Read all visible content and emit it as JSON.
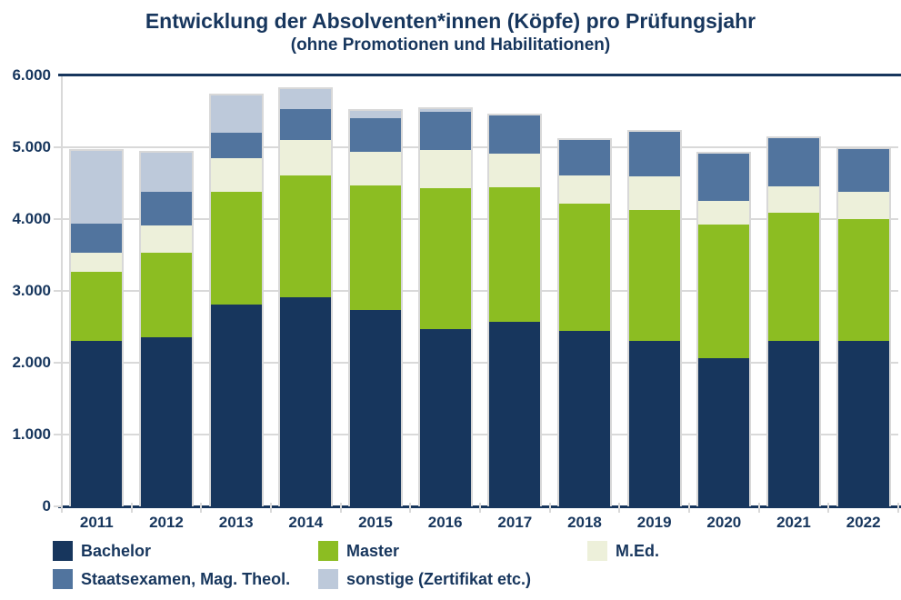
{
  "title": "Entwicklung der Absolventen*innen (Köpfe) pro Prüfungsjahr",
  "subtitle": "(ohne Promotionen und Habilitationen)",
  "colors": {
    "text": "#17365d",
    "axis": "#17365d",
    "gridline": "#d9d9d9",
    "bar_border": "#d8d8d8",
    "background": "#ffffff"
  },
  "chart_data": {
    "type": "bar",
    "stacked": true,
    "title": "Entwicklung der Absolventen*innen (Köpfe) pro Prüfungsjahr",
    "subtitle": "(ohne Promotionen und Habilitationen)",
    "categories": [
      "2011",
      "2012",
      "2013",
      "2014",
      "2015",
      "2016",
      "2017",
      "2018",
      "2019",
      "2020",
      "2021",
      "2022"
    ],
    "series": [
      {
        "name": "Bachelor",
        "color": "#17365d",
        "values": [
          2310,
          2350,
          2810,
          2910,
          2740,
          2470,
          2570,
          2440,
          2300,
          2060,
          2300,
          2300
        ]
      },
      {
        "name": "Master",
        "color": "#8cbd22",
        "values": [
          950,
          1180,
          1570,
          1700,
          1730,
          1960,
          1870,
          1770,
          1830,
          1870,
          1790,
          1700
        ]
      },
      {
        "name": "M.Ed.",
        "color": "#edf0da",
        "values": [
          270,
          380,
          470,
          490,
          470,
          530,
          470,
          400,
          470,
          320,
          360,
          380
        ]
      },
      {
        "name": "Staatsexamen, Mag. Theol.",
        "color": "#51749e",
        "values": [
          410,
          470,
          350,
          430,
          460,
          530,
          530,
          490,
          610,
          660,
          680,
          600
        ]
      },
      {
        "name": "sonstige (Zertifikat etc.)",
        "color": "#bdc9da",
        "values": [
          1010,
          550,
          520,
          280,
          110,
          40,
          0,
          0,
          0,
          0,
          0,
          0
        ]
      }
    ],
    "totals": [
      4950,
      4930,
      5720,
      5810,
      5510,
      5530,
      5440,
      5100,
      5210,
      4910,
      5130,
      4980
    ],
    "xlabel": "",
    "ylabel": "",
    "ylim": [
      0,
      6000
    ],
    "ytick_step": 1000,
    "ytick_labels": [
      "0",
      "1.000",
      "2.000",
      "3.000",
      "4.000",
      "5.000",
      "6.000"
    ],
    "grid": true,
    "legend_position": "bottom"
  }
}
